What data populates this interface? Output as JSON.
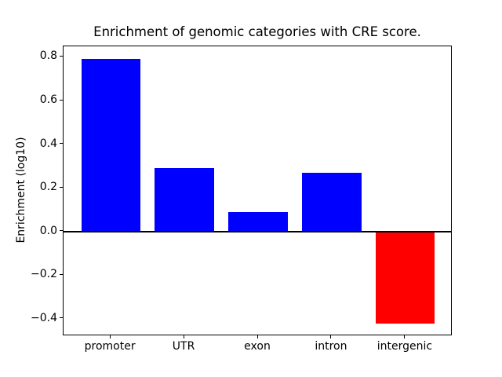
{
  "title": "Enrichment of genomic categories with CRE score.",
  "chart_data": {
    "type": "bar",
    "title": "Enrichment of genomic categories with CRE score.",
    "xlabel": "",
    "ylabel": "Enrichment (log10)",
    "categories": [
      "promoter",
      "UTR",
      "exon",
      "intron",
      "intergenic"
    ],
    "values": [
      0.79,
      0.29,
      0.09,
      0.27,
      -0.42
    ],
    "bar_colors": [
      "#0000ff",
      "#0000ff",
      "#0000ff",
      "#0000ff",
      "#ff0000"
    ],
    "positive_color": "#0000ff",
    "negative_color": "#ff0000",
    "bar_width": 0.8,
    "xlim": [
      -0.64,
      4.64
    ],
    "ylim": [
      -0.48,
      0.85
    ],
    "yticks": [
      0.8,
      0.6,
      0.4,
      0.2,
      0.0,
      -0.2,
      -0.4
    ],
    "ytick_labels": [
      "0.8",
      "0.6",
      "0.4",
      "0.2",
      "0.0",
      "−0.2",
      "−0.4"
    ],
    "zero_line": true,
    "grid": false,
    "legend": null,
    "background_color": "#ffffff",
    "axis_color": "#000000"
  }
}
